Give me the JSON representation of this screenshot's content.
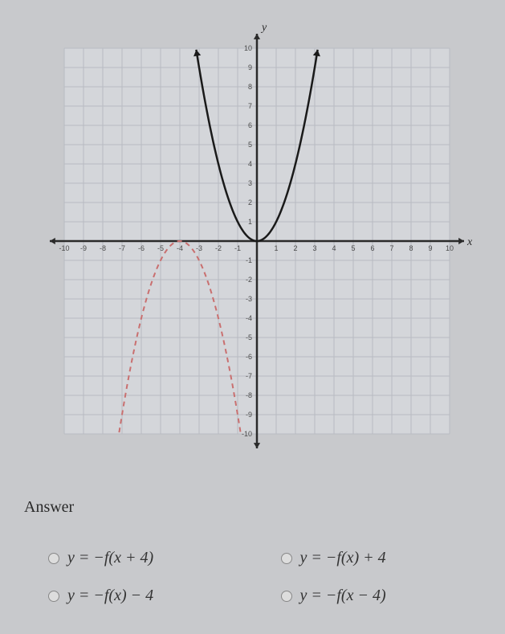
{
  "graph": {
    "xlim": [
      -10,
      10
    ],
    "ylim": [
      -10,
      10
    ],
    "xtick_step": 1,
    "ytick_step": 1,
    "grid_color": "#b8bbc2",
    "axis_color": "#2a2a2a",
    "background_color": "#d4d6da",
    "axis_label_x": "x",
    "axis_label_y": "y",
    "label_fontsize": 14,
    "tick_fontsize": 9,
    "tick_color": "#4a4a4a",
    "curves": [
      {
        "name": "solid",
        "type": "parabola",
        "vertex": [
          0,
          0
        ],
        "direction": "up",
        "coefficient": 1,
        "color": "#1a1a1a",
        "stroke_width": 2.5,
        "dash": "none",
        "arrows": true,
        "x_range": [
          -3.15,
          3.15
        ]
      },
      {
        "name": "dashed",
        "type": "parabola",
        "vertex": [
          -4,
          0
        ],
        "direction": "down",
        "coefficient": -1,
        "color": "#c96f6f",
        "stroke_width": 2,
        "dash": "6,5",
        "arrows": false,
        "x_range": [
          -7.15,
          -0.85
        ]
      }
    ]
  },
  "answer_label": "Answer",
  "options": [
    {
      "id": "opt1",
      "formula": "y = −f(x + 4)"
    },
    {
      "id": "opt2",
      "formula": "y = −f(x) + 4"
    },
    {
      "id": "opt3",
      "formula": "y = −f(x) − 4"
    },
    {
      "id": "opt4",
      "formula": "y = −f(x − 4)"
    }
  ],
  "colors": {
    "page_bg": "#c8c9cc",
    "text": "#2a2a2a"
  }
}
